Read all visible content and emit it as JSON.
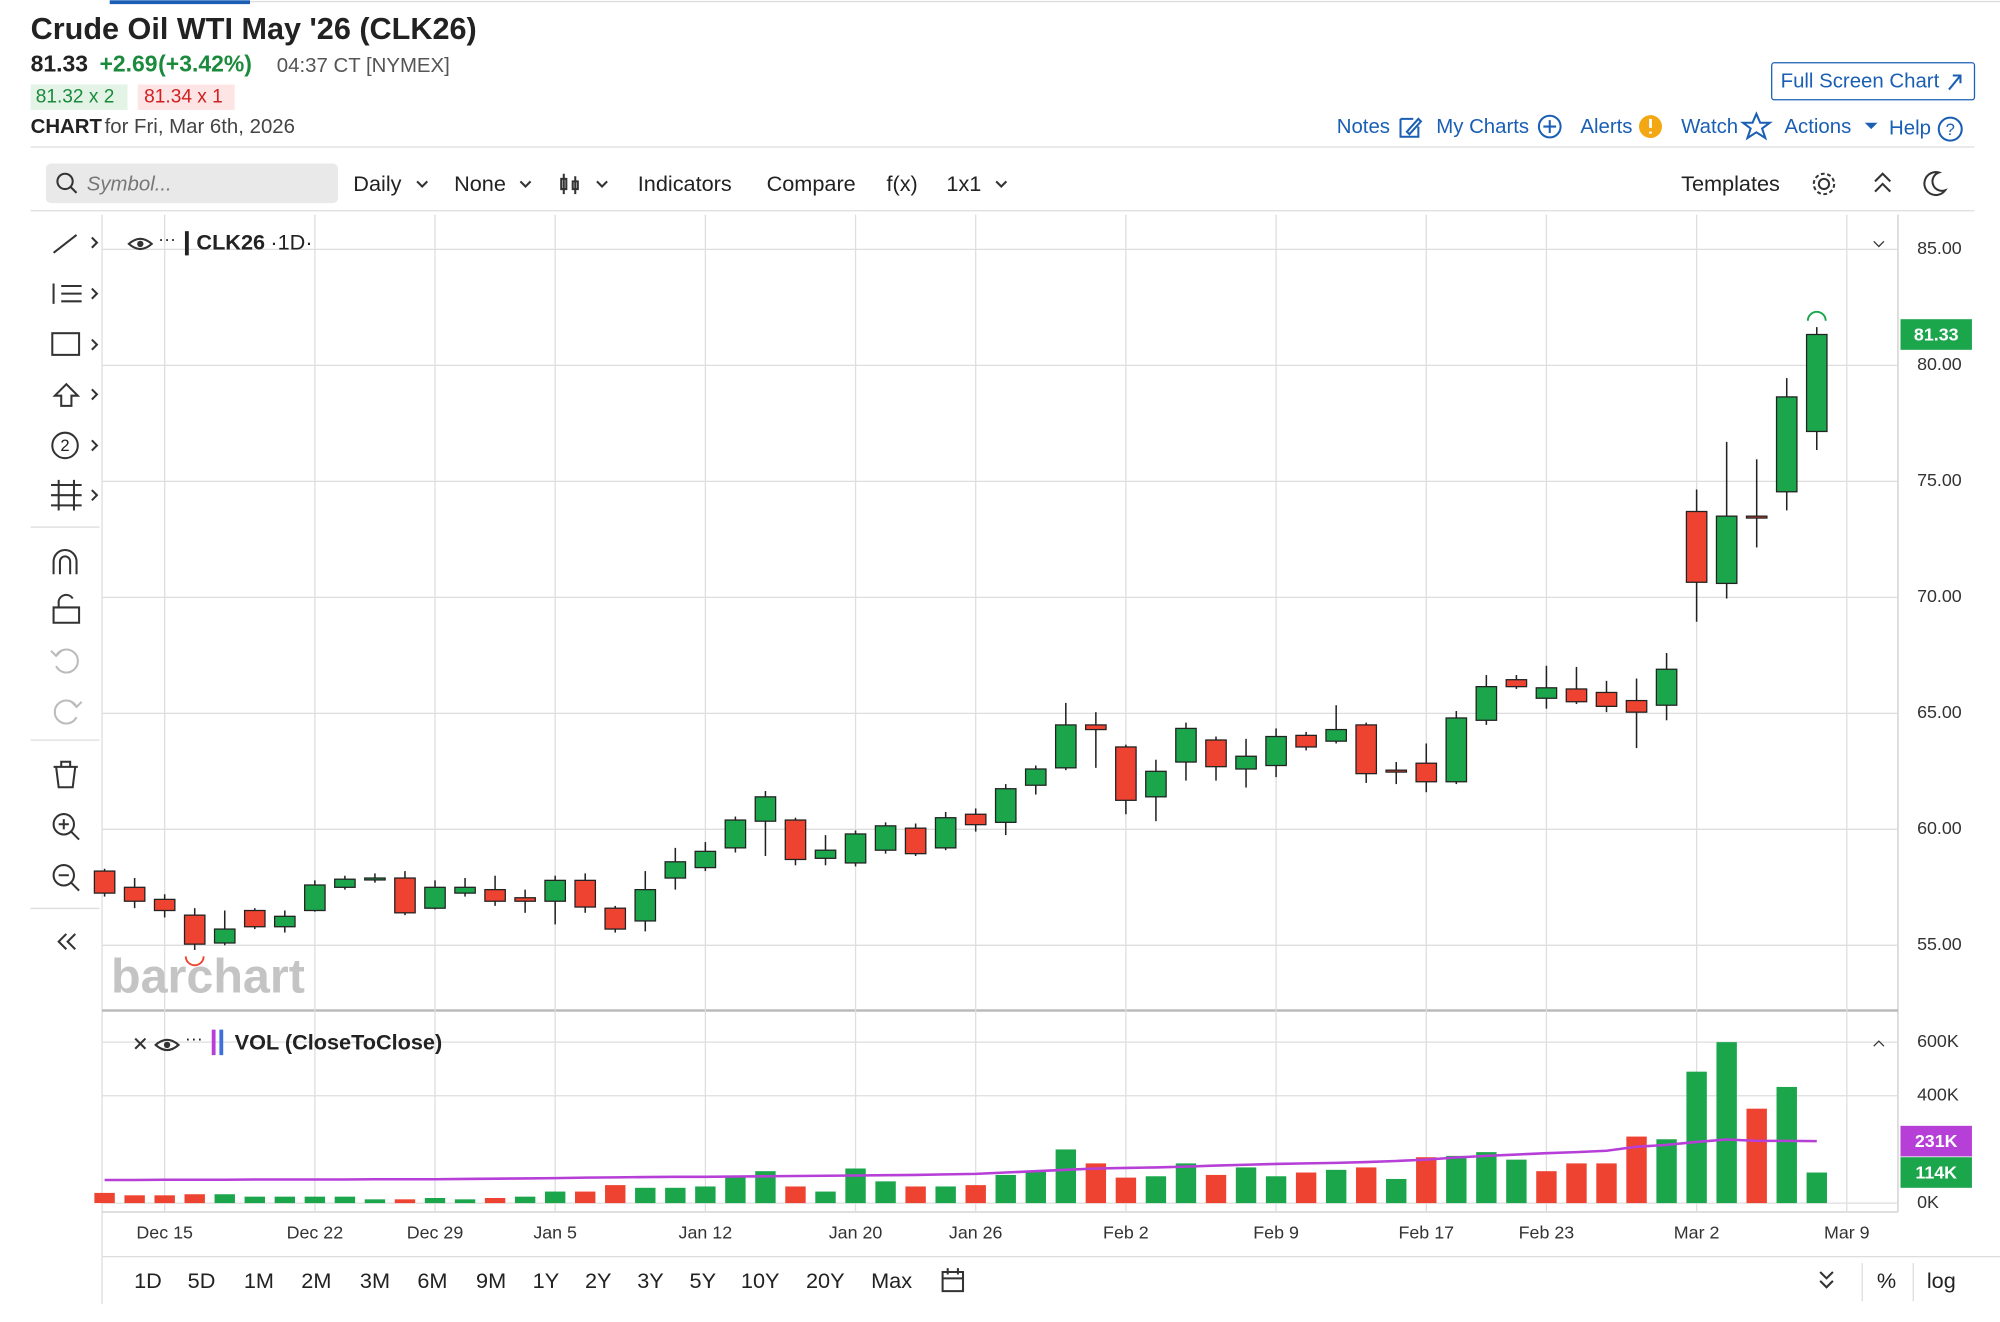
{
  "header": {
    "title": "Crude Oil WTI May '26 (CLK26)",
    "price": "81.33",
    "change": "+2.69",
    "change_pct": "(+3.42%)",
    "time": "04:37 CT [NYMEX]",
    "bid": "81.32 x 2",
    "ask": "81.34 x 1",
    "chart_label": "CHART",
    "chart_date": "for Fri, Mar 6th, 2026",
    "full_screen": "Full Screen Chart",
    "links": [
      "Notes",
      "My Charts",
      "Alerts",
      "Watch",
      "Actions",
      "Help"
    ]
  },
  "toolbar": {
    "symbol_placeholder": "Symbol...",
    "interval": "Daily",
    "none": "None",
    "indicators": "Indicators",
    "compare": "Compare",
    "fx": "f(x)",
    "layout": "1x1",
    "templates": "Templates"
  },
  "chart_data": {
    "type": "candlestick",
    "symbol": "CLK26",
    "period": "·1D·",
    "watermark": "barchart",
    "up_color": "#1ca64c",
    "down_color": "#ee4331",
    "categories": [
      null,
      null,
      "Dec 15",
      null,
      null,
      null,
      null,
      "Dec 22",
      null,
      null,
      null,
      "Dec 29",
      null,
      null,
      null,
      "Jan 5",
      null,
      null,
      null,
      null,
      "Jan 12",
      null,
      null,
      null,
      null,
      "Jan 20",
      null,
      null,
      null,
      "Jan 26",
      null,
      null,
      null,
      null,
      "Feb 2",
      null,
      null,
      null,
      null,
      "Feb 9",
      null,
      null,
      null,
      null,
      "Feb 17",
      null,
      null,
      null,
      "Feb 23",
      null,
      null,
      null,
      null,
      "Mar 2",
      null,
      null,
      null,
      null,
      "Mar 9"
    ],
    "open": [
      58.2,
      57.5,
      56.98,
      56.3,
      55.1,
      56.5,
      55.8,
      56.5,
      57.5,
      57.85,
      57.9,
      56.6,
      57.25,
      57.4,
      57.05,
      56.9,
      57.8,
      56.6,
      56.05,
      57.9,
      58.35,
      59.2,
      60.35,
      60.4,
      58.75,
      58.55,
      59.1,
      60.05,
      59.2,
      60.65,
      60.3,
      61.9,
      62.65,
      64.5,
      63.55,
      61.4,
      62.9,
      63.85,
      62.6,
      62.75,
      64.05,
      63.8,
      64.5,
      62.55,
      62.85,
      62.05,
      64.7,
      66.45,
      65.65,
      66.05,
      65.9,
      65.55,
      65.35,
      73.7,
      70.6,
      73.5,
      74.55,
      77.15,
      null
    ],
    "high": [
      58.3,
      57.9,
      57.2,
      56.6,
      56.5,
      56.6,
      56.5,
      57.8,
      58.0,
      58.1,
      58.2,
      57.8,
      57.9,
      58.0,
      57.4,
      58.0,
      58.1,
      56.7,
      58.2,
      59.2,
      59.45,
      60.55,
      61.65,
      60.5,
      59.75,
      59.95,
      60.3,
      60.25,
      60.75,
      60.9,
      61.95,
      62.75,
      65.45,
      65.05,
      63.65,
      63.0,
      64.6,
      64.0,
      63.9,
      64.35,
      64.2,
      65.35,
      64.6,
      62.9,
      63.7,
      65.1,
      66.65,
      66.65,
      67.05,
      67.0,
      66.4,
      66.5,
      67.6,
      74.65,
      76.7,
      75.95,
      79.45,
      81.65,
      null
    ],
    "low": [
      57.1,
      56.6,
      56.2,
      54.8,
      55.0,
      55.7,
      55.55,
      56.45,
      57.4,
      57.7,
      56.3,
      56.55,
      57.1,
      56.7,
      56.4,
      55.9,
      56.4,
      55.55,
      55.6,
      57.4,
      58.2,
      59.0,
      58.85,
      58.45,
      58.45,
      58.4,
      58.95,
      58.85,
      59.1,
      59.9,
      59.75,
      61.5,
      62.55,
      62.65,
      60.65,
      60.35,
      62.1,
      62.1,
      61.8,
      62.25,
      63.4,
      63.7,
      62.0,
      61.95,
      61.6,
      61.95,
      64.5,
      66.05,
      65.2,
      65.4,
      65.05,
      63.5,
      64.7,
      68.95,
      69.95,
      72.15,
      73.75,
      76.35,
      null
    ],
    "close": [
      57.25,
      56.9,
      56.5,
      55.05,
      55.7,
      55.8,
      56.25,
      57.6,
      57.85,
      57.9,
      56.4,
      57.5,
      57.5,
      56.9,
      56.9,
      57.8,
      56.65,
      55.7,
      57.4,
      58.6,
      59.05,
      60.4,
      61.4,
      58.7,
      59.1,
      59.8,
      60.15,
      58.95,
      60.5,
      60.2,
      61.75,
      62.6,
      64.5,
      64.3,
      61.25,
      62.5,
      64.35,
      62.7,
      63.15,
      64.0,
      63.55,
      64.3,
      62.4,
      62.5,
      62.05,
      64.8,
      66.15,
      66.15,
      66.1,
      65.5,
      65.3,
      65.05,
      66.9,
      70.65,
      73.5,
      73.45,
      78.64,
      81.33,
      null
    ],
    "ylim": [
      52.3,
      86.5
    ],
    "yticks": [
      {
        "value": 55,
        "label": "55.00"
      },
      {
        "value": 60,
        "label": "60.00"
      },
      {
        "value": 65,
        "label": "65.00"
      },
      {
        "value": 70,
        "label": "70.00"
      },
      {
        "value": 75,
        "label": "75.00"
      },
      {
        "value": 80,
        "label": "80.00"
      },
      {
        "value": 85,
        "label": "85.00"
      }
    ],
    "grid": true,
    "volume": {
      "name": "VOL (CloseToClose)",
      "values": [
        38000,
        29000,
        29000,
        33000,
        33000,
        24000,
        24000,
        24000,
        24000,
        14000,
        14000,
        19000,
        14000,
        19000,
        24000,
        43000,
        43000,
        67000,
        57000,
        57000,
        62000,
        100000,
        119000,
        62000,
        43000,
        129000,
        81000,
        62000,
        62000,
        67000,
        105000,
        119000,
        200000,
        148000,
        95000,
        100000,
        148000,
        105000,
        133000,
        100000,
        114000,
        124000,
        133000,
        90000,
        171000,
        176000,
        190000,
        162000,
        119000,
        148000,
        148000,
        248000,
        238000,
        490000,
        600000,
        352000,
        433000,
        114000,
        null
      ],
      "value_labels": [
        null,
        null,
        null,
        null,
        null,
        null,
        null,
        null,
        null,
        null,
        null,
        null,
        null,
        null,
        null,
        null,
        null,
        null,
        null,
        null,
        null,
        null,
        null,
        null,
        null,
        null,
        null,
        null,
        null,
        null,
        null,
        null,
        null,
        null,
        null,
        null,
        null,
        null,
        null,
        null,
        null,
        null,
        null,
        null,
        null,
        null,
        null,
        null,
        null,
        null,
        null,
        null,
        null,
        null,
        null,
        null,
        null,
        "114K",
        null
      ],
      "ma": {
        "color": "#b63fd8",
        "values": [
          86000,
          86000,
          87000,
          87000,
          87000,
          88000,
          88000,
          88000,
          88000,
          89000,
          89000,
          89000,
          90000,
          91000,
          92000,
          93000,
          95000,
          96000,
          97000,
          98000,
          98000,
          99000,
          100000,
          101000,
          102000,
          103000,
          104000,
          105000,
          107000,
          109000,
          114000,
          119000,
          124000,
          129000,
          131000,
          133000,
          136000,
          140000,
          143000,
          146000,
          148000,
          150000,
          153000,
          157000,
          162000,
          170000,
          176000,
          181000,
          186000,
          190000,
          195000,
          210000,
          217000,
          228000,
          237000,
          232000,
          232000,
          231000,
          null
        ],
        "value_labels": [
          null,
          null,
          null,
          null,
          null,
          null,
          null,
          null,
          null,
          null,
          null,
          null,
          null,
          null,
          null,
          null,
          null,
          null,
          null,
          null,
          null,
          null,
          null,
          null,
          null,
          null,
          null,
          null,
          null,
          null,
          null,
          null,
          null,
          null,
          null,
          null,
          null,
          null,
          null,
          null,
          null,
          null,
          null,
          null,
          null,
          null,
          null,
          null,
          null,
          null,
          null,
          null,
          null,
          null,
          null,
          null,
          null,
          "231K",
          null
        ]
      },
      "ylim": [
        0,
        680000
      ],
      "yticks": [
        {
          "value": 0,
          "label": "0K"
        },
        {
          "value": 400000,
          "label": "400K"
        },
        {
          "value": 600000,
          "label": "600K"
        }
      ]
    }
  },
  "periods": [
    "1D",
    "5D",
    "1M",
    "2M",
    "3M",
    "6M",
    "9M",
    "1Y",
    "2Y",
    "3Y",
    "5Y",
    "10Y",
    "20Y",
    "Max"
  ],
  "percent": "%",
  "log": "log"
}
